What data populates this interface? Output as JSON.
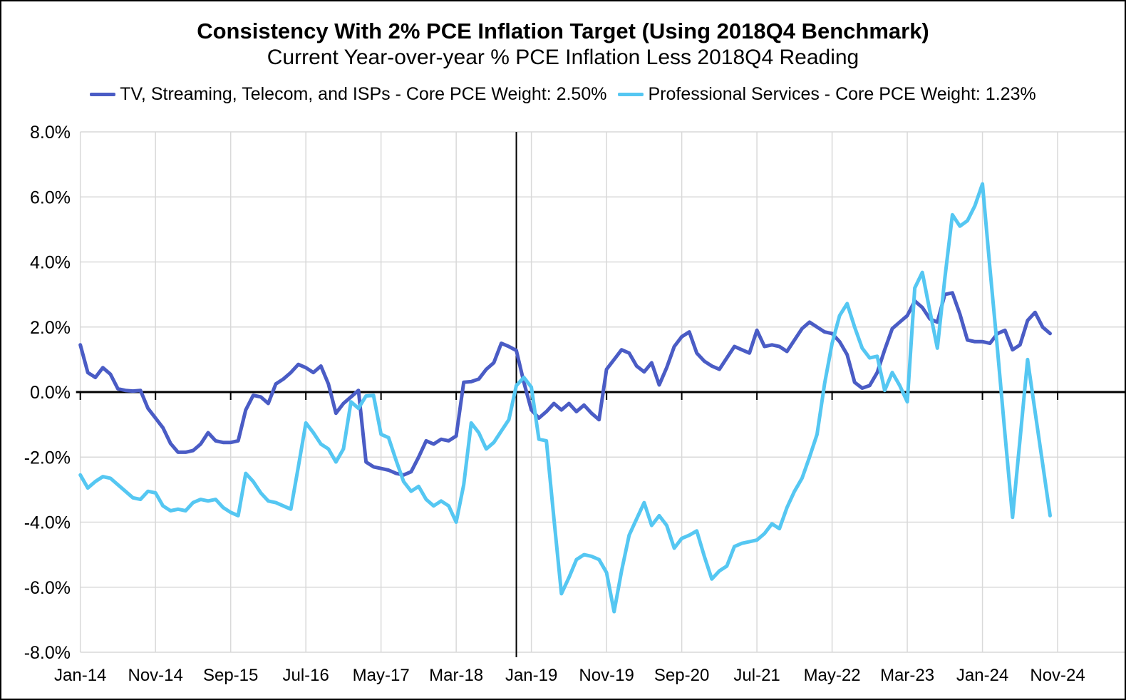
{
  "title": "Consistency With 2% PCE Inflation Target (Using 2018Q4 Benchmark)",
  "subtitle": "Current Year-over-year % PCE Inflation Less 2018Q4 Reading",
  "legend": [
    {
      "label": "TV, Streaming, Telecom, and ISPs - Core PCE Weight: 2.50%",
      "color": "#4A5CC5"
    },
    {
      "label": "Professional Services - Core PCE Weight: 1.23%",
      "color": "#55C7F2"
    }
  ],
  "chart_data": {
    "type": "line",
    "title": "Consistency With 2% PCE Inflation Target (Using 2018Q4 Benchmark)",
    "subtitle": "Current Year-over-year % PCE Inflation Less 2018Q4 Reading",
    "x_unit": "months, monthly data from Jan-14 through Oct-24",
    "x_tick_labels": [
      "Jan-14",
      "Nov-14",
      "Sep-15",
      "Jul-16",
      "May-17",
      "Mar-18",
      "Jan-19",
      "Nov-19",
      "Sep-20",
      "Jul-21",
      "May-22",
      "Mar-23",
      "Jan-24",
      "Nov-24"
    ],
    "x_tick_month_indices": [
      0,
      10,
      20,
      30,
      40,
      50,
      60,
      70,
      80,
      90,
      100,
      110,
      120,
      130
    ],
    "x_domain_month_indices": [
      0,
      139
    ],
    "y_tick_labels": [
      "8.0%",
      "6.0%",
      "4.0%",
      "2.0%",
      "0.0%",
      "-2.0%",
      "-4.0%",
      "-6.0%",
      "-8.0%"
    ],
    "y_tick_values": [
      8,
      6,
      4,
      2,
      0,
      -2,
      -4,
      -6,
      -8
    ],
    "ylim": [
      -8,
      8
    ],
    "grid": true,
    "legend_position": "top",
    "zero_axis": true,
    "benchmark_vline_month_index": 58,
    "series": [
      {
        "name": "TV, Streaming, Telecom, and ISPs - Core PCE Weight: 2.50%",
        "color": "#4A5CC5",
        "start_month": "Jan-14",
        "values": [
          1.45,
          0.6,
          0.45,
          0.75,
          0.55,
          0.1,
          0.05,
          0.03,
          0.05,
          -0.5,
          -0.8,
          -1.1,
          -1.58,
          -1.85,
          -1.85,
          -1.8,
          -1.6,
          -1.25,
          -1.5,
          -1.55,
          -1.55,
          -1.5,
          -0.55,
          -0.1,
          -0.15,
          -0.35,
          0.25,
          0.4,
          0.6,
          0.85,
          0.75,
          0.6,
          0.8,
          0.25,
          -0.65,
          -0.35,
          -0.15,
          0.05,
          -2.15,
          -2.3,
          -2.35,
          -2.4,
          -2.5,
          -2.55,
          -2.45,
          -2.0,
          -1.5,
          -1.6,
          -1.45,
          -1.5,
          -1.35,
          0.3,
          0.32,
          0.4,
          0.7,
          0.9,
          1.5,
          1.4,
          1.28,
          0.3,
          -0.55,
          -0.8,
          -0.6,
          -0.35,
          -0.55,
          -0.35,
          -0.6,
          -0.4,
          -0.65,
          -0.85,
          0.7,
          1.0,
          1.3,
          1.2,
          0.8,
          0.62,
          0.9,
          0.22,
          0.75,
          1.4,
          1.7,
          1.85,
          1.2,
          0.95,
          0.8,
          0.7,
          1.05,
          1.4,
          1.3,
          1.2,
          1.9,
          1.4,
          1.45,
          1.4,
          1.25,
          1.6,
          1.95,
          2.15,
          2.0,
          1.85,
          1.8,
          1.55,
          1.15,
          0.3,
          0.12,
          0.2,
          0.6,
          1.3,
          1.95,
          2.15,
          2.35,
          2.8,
          2.6,
          2.25,
          2.15,
          3.0,
          3.05,
          2.4,
          1.6,
          1.55,
          1.55,
          1.5,
          1.8,
          1.9,
          1.3,
          1.45,
          2.2,
          2.45,
          2.0,
          1.8
        ]
      },
      {
        "name": "Professional Services - Core PCE Weight: 1.23%",
        "color": "#55C7F2",
        "start_month": "Jan-14",
        "values": [
          -2.55,
          -2.95,
          -2.75,
          -2.6,
          -2.65,
          -2.85,
          -3.05,
          -3.25,
          -3.3,
          -3.05,
          -3.1,
          -3.5,
          -3.65,
          -3.6,
          -3.65,
          -3.4,
          -3.3,
          -3.35,
          -3.3,
          -3.55,
          -3.7,
          -3.8,
          -2.5,
          -2.75,
          -3.1,
          -3.35,
          -3.4,
          -3.5,
          -3.6,
          -2.3,
          -0.95,
          -1.25,
          -1.6,
          -1.75,
          -2.15,
          -1.75,
          -0.3,
          -0.5,
          -0.12,
          -0.1,
          -1.3,
          -1.4,
          -2.1,
          -2.75,
          -3.05,
          -2.9,
          -3.3,
          -3.5,
          -3.35,
          -3.5,
          -4.0,
          -2.85,
          -0.95,
          -1.25,
          -1.75,
          -1.55,
          -1.2,
          -0.85,
          0.2,
          0.45,
          0.15,
          -1.45,
          -1.5,
          -3.9,
          -6.2,
          -5.7,
          -5.15,
          -5.0,
          -5.05,
          -5.15,
          -5.55,
          -6.75,
          -5.5,
          -4.4,
          -3.9,
          -3.4,
          -4.1,
          -3.8,
          -4.1,
          -4.8,
          -4.5,
          -4.4,
          -4.27,
          -5.05,
          -5.75,
          -5.5,
          -5.35,
          -4.75,
          -4.65,
          -4.6,
          -4.55,
          -4.35,
          -4.05,
          -4.2,
          -3.55,
          -3.05,
          -2.65,
          -2.0,
          -1.3,
          0.25,
          1.5,
          2.35,
          2.72,
          2.0,
          1.35,
          1.05,
          1.1,
          0.05,
          0.6,
          0.2,
          -0.3,
          3.2,
          3.68,
          2.5,
          1.35,
          3.5,
          5.45,
          5.1,
          5.27,
          5.73,
          6.4,
          3.8,
          1.3,
          -1.3,
          -3.85,
          -1.45,
          1.0,
          -0.6,
          -2.2,
          -3.8
        ]
      }
    ],
    "colors": {
      "gridline": "#D9D9D9",
      "zero_line": "#000000",
      "benchmark_line": "#000000",
      "text": "#000000",
      "background": "#FFFFFF"
    }
  }
}
